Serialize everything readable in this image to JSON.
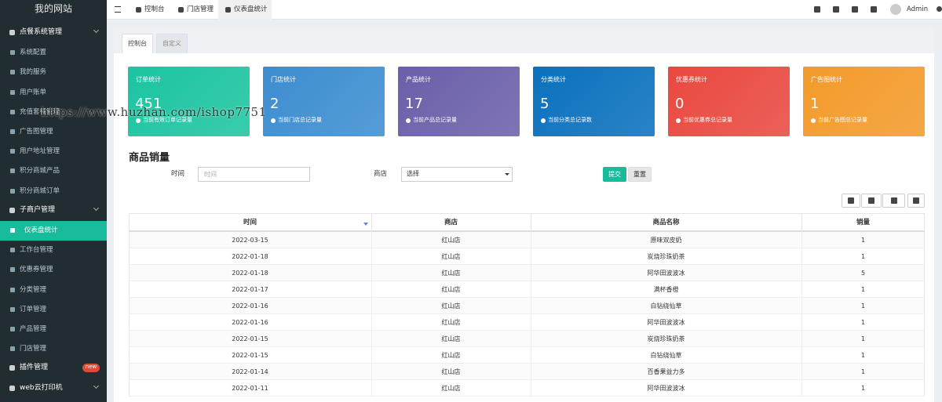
{
  "brand": "我的网站",
  "menu": [
    {
      "label": "点餐系统管理",
      "children": [
        {
          "label": "系统配置"
        },
        {
          "label": "我的服务"
        },
        {
          "label": "用户账单"
        },
        {
          "label": "充值套餐管理"
        },
        {
          "label": "广告图管理"
        },
        {
          "label": "用户地址管理"
        },
        {
          "label": "积分商城产品"
        },
        {
          "label": "积分商城订单"
        }
      ]
    },
    {
      "label": "子商户管理",
      "children": [
        {
          "label": "仪表盘统计",
          "active": true
        },
        {
          "label": "工作台管理"
        },
        {
          "label": "优惠券管理"
        },
        {
          "label": "分类管理"
        },
        {
          "label": "订单管理"
        },
        {
          "label": "产品管理"
        },
        {
          "label": "门店管理"
        }
      ]
    },
    {
      "label": "插件管理",
      "badge": "new"
    },
    {
      "label": "web云打印机"
    }
  ],
  "top_tabs": [
    "控制台",
    "门店管理",
    "仪表盘统计"
  ],
  "user": "Admin",
  "sub_tabs": [
    "控制台",
    "自定义"
  ],
  "cards": [
    {
      "title": "订单统计",
      "value": "451",
      "note": "当前有效订单记录量",
      "color": "#1bc4a0"
    },
    {
      "title": "门店统计",
      "value": "2",
      "note": "当前门店总记录量",
      "color": "#3c8dd0"
    },
    {
      "title": "产品统计",
      "value": "17",
      "note": "当前产品总记录量",
      "color": "#6a5fa9"
    },
    {
      "title": "分类统计",
      "value": "5",
      "note": "当前分类总记录数",
      "color": "#0a70bd"
    },
    {
      "title": "优惠券统计",
      "value": "0",
      "note": "当前优惠券总记录量",
      "color": "#e9483f"
    },
    {
      "title": "广告图统计",
      "value": "1",
      "note": "当前广告图总记录量",
      "color": "#f39a2a"
    }
  ],
  "section_title": "商品销量",
  "form": {
    "time_label": "时间",
    "time_placeholder": "时间",
    "shop_label": "商店",
    "shop_select": "选择",
    "submit": "提交",
    "reset": "重置"
  },
  "table": {
    "headers": [
      "时间",
      "商店",
      "商品名称",
      "销量"
    ],
    "rows": [
      [
        "2022-03-15",
        "红山店",
        "原味双皮奶",
        "1"
      ],
      [
        "2022-01-18",
        "红山店",
        "炭烧珍珠奶茶",
        "1"
      ],
      [
        "2022-01-18",
        "红山店",
        "阿华田波波冰",
        "5"
      ],
      [
        "2022-01-17",
        "红山店",
        "满杯香橙",
        "1"
      ],
      [
        "2022-01-16",
        "红山店",
        "白钻绕仙草",
        "1"
      ],
      [
        "2022-01-16",
        "红山店",
        "阿华田波波冰",
        "1"
      ],
      [
        "2022-01-15",
        "红山店",
        "炭烧珍珠奶茶",
        "1"
      ],
      [
        "2022-01-15",
        "红山店",
        "白钻绕仙草",
        "1"
      ],
      [
        "2022-01-14",
        "红山店",
        "百香果益力多",
        "1"
      ],
      [
        "2022-01-11",
        "红山店",
        "阿华田波波冰",
        "1"
      ]
    ]
  },
  "watermark": "https://www.huzhan.com/ishop7751"
}
